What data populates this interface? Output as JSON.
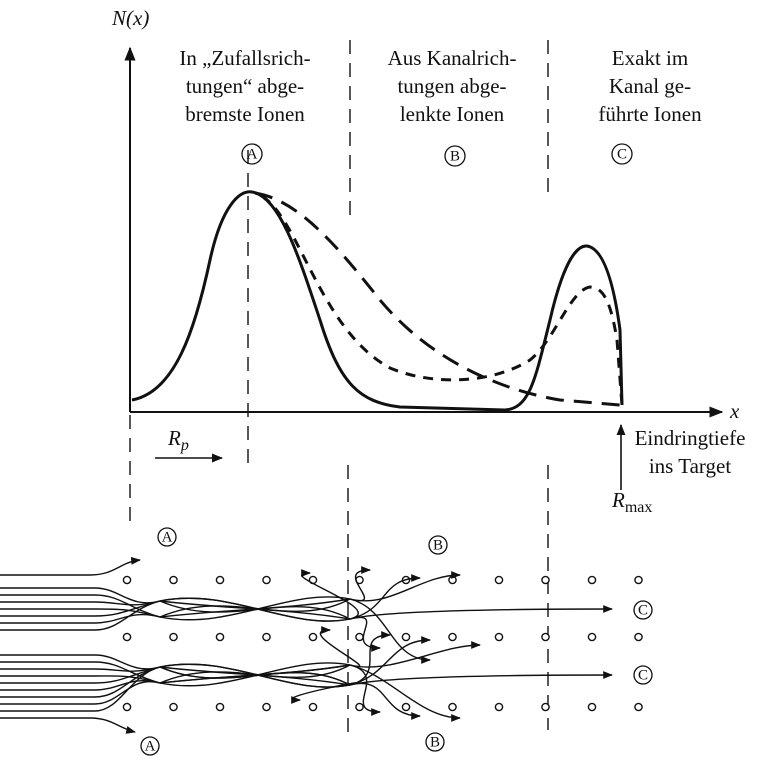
{
  "axis": {
    "y_label": "N(x)",
    "x_label": "x"
  },
  "regions": [
    {
      "lines": [
        "In „Zufallsrich-",
        "tungen“ abge-",
        "bremste Ionen"
      ],
      "marker": "A"
    },
    {
      "lines": [
        "Aus Kanalrich-",
        "tungen abge-",
        "lenkte Ionen"
      ],
      "marker": "B"
    },
    {
      "lines": [
        "Exakt im",
        "Kanal ge-",
        "führte Ionen"
      ],
      "marker": "C"
    }
  ],
  "projected_range": {
    "symbol": "R",
    "subscript": "p"
  },
  "max_range": {
    "symbol": "R",
    "subscript": "max"
  },
  "depth_label": [
    "Eindringtiefe",
    "ins Target"
  ],
  "lattice_markers": [
    "A",
    "B",
    "C",
    "C",
    "A",
    "B"
  ]
}
